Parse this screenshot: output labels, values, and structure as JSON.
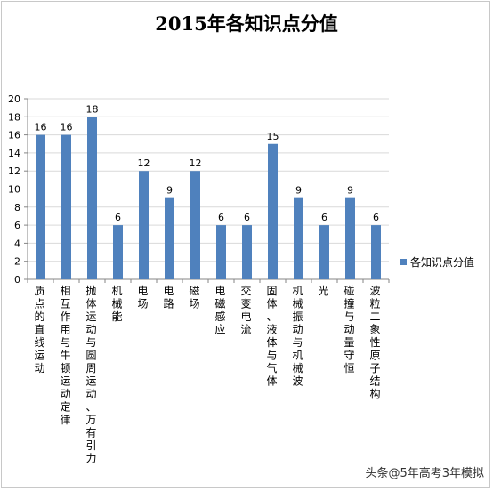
{
  "colors": {
    "bar": "#4f81bd",
    "grid": "#d9d9d9",
    "axis": "#868686",
    "text": "#000000"
  },
  "chart_data": {
    "type": "bar",
    "title": "2015年各知识点分值",
    "categories": [
      "质点的直线运动",
      "相互作用与牛顿运动定律",
      "抛体运动与圆周运动、万有引力",
      "机械能",
      "电场",
      "电路",
      "磁场",
      "电磁感应",
      "交变电流",
      "固体、液体与气体",
      "机械振动与机械波",
      "光",
      "碰撞与动量守恒",
      "波粒二象性原子结构"
    ],
    "series": [
      {
        "name": "各知识点分值",
        "values": [
          16,
          16,
          18,
          6,
          12,
          9,
          12,
          6,
          6,
          15,
          9,
          6,
          9,
          6
        ]
      }
    ],
    "ylim": [
      0,
      20
    ],
    "yticks": [
      0,
      2,
      4,
      6,
      8,
      10,
      12,
      14,
      16,
      18,
      20
    ],
    "grid": true,
    "legend": "right",
    "data_labels": true
  },
  "watermark": {
    "prefix": "头条",
    "handle": "@5年高考3年模拟"
  }
}
